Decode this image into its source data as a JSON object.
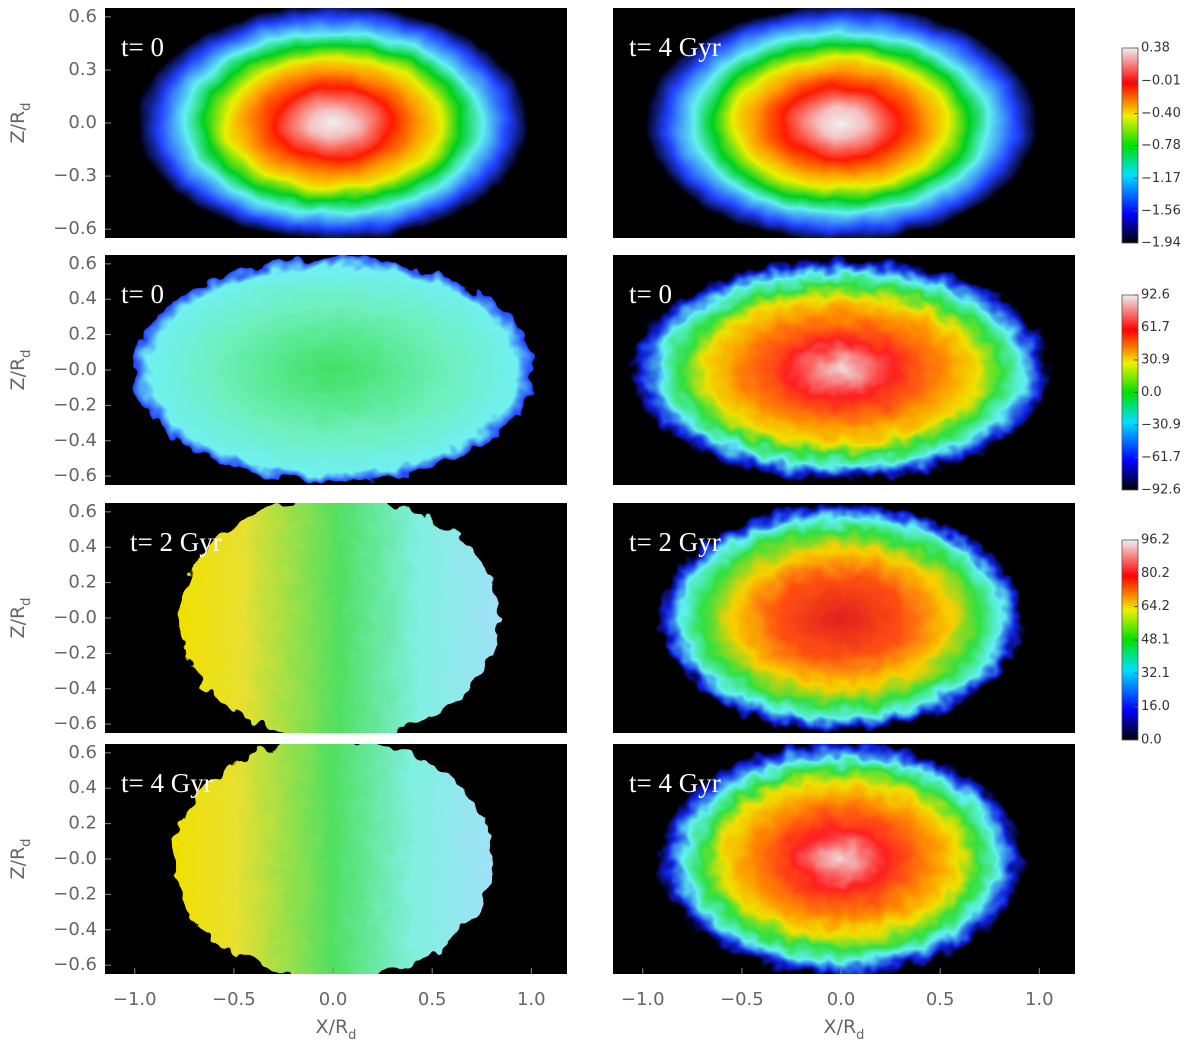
{
  "chart_data": [
    {
      "type": "heatmap",
      "annotation": "t= 0",
      "xlim": [
        -1.15,
        1.18
      ],
      "ylim": [
        -0.65,
        0.65
      ],
      "ylabel": {
        "text": "Z/R",
        "sub": "d"
      },
      "yticks": [
        {
          "value": 0.6,
          "label": "0.6"
        },
        {
          "value": 0.3,
          "label": "0.3"
        },
        {
          "value": 0,
          "label": "0.0"
        },
        {
          "value": -0.3,
          "label": "−0.3"
        },
        {
          "value": -0.6,
          "label": "−0.6"
        }
      ]
    },
    {
      "type": "heatmap",
      "annotation": "t= 4 Gyr",
      "xlim": [
        -1.15,
        1.18
      ],
      "ylim": [
        -0.65,
        0.65
      ],
      "colorbar": {
        "lim": [
          -1.94,
          0.38
        ],
        "ticks": [
          {
            "value": 0.38,
            "label": "0.38"
          },
          {
            "value": -0.01,
            "label": "−0.01"
          },
          {
            "value": -0.4,
            "label": "−0.40"
          },
          {
            "value": -0.78,
            "label": "−0.78"
          },
          {
            "value": -1.17,
            "label": "−1.17"
          },
          {
            "value": -1.56,
            "label": "−1.56"
          },
          {
            "value": -1.94,
            "label": "−1.94"
          }
        ]
      }
    },
    {
      "type": "heatmap",
      "annotation": "t= 0",
      "xlim": [
        -1.15,
        1.18
      ],
      "ylim": [
        -0.65,
        0.65
      ],
      "ylabel": {
        "text": "Z/R",
        "sub": "d"
      },
      "yticks": [
        {
          "value": 0.6,
          "label": "0.6"
        },
        {
          "value": 0.4,
          "label": "0.4"
        },
        {
          "value": 0.2,
          "label": "0.2"
        },
        {
          "value": 0,
          "label": "−0.0"
        },
        {
          "value": -0.2,
          "label": "−0.2"
        },
        {
          "value": -0.4,
          "label": "−0.4"
        },
        {
          "value": -0.6,
          "label": "−0.6"
        }
      ]
    },
    {
      "type": "heatmap",
      "annotation": "t= 0",
      "xlim": [
        -1.15,
        1.18
      ],
      "ylim": [
        -0.65,
        0.65
      ],
      "colorbar": {
        "lim": [
          -92.6,
          92.6
        ],
        "ticks": [
          92.6,
          61.7,
          30.9,
          {
            "value": 0,
            "label": "0.0"
          },
          {
            "value": -30.9,
            "label": "−30.9"
          },
          {
            "value": -61.7,
            "label": "−61.7"
          },
          {
            "value": -92.6,
            "label": "−92.6"
          }
        ]
      }
    },
    {
      "type": "heatmap",
      "annotation": "t= 2 Gyr",
      "xlim": [
        -1.15,
        1.18
      ],
      "ylim": [
        -0.65,
        0.65
      ],
      "ylabel": {
        "text": "Z/R",
        "sub": "d"
      },
      "yticks": [
        {
          "value": 0.6,
          "label": "0.6"
        },
        {
          "value": 0.4,
          "label": "0.4"
        },
        {
          "value": 0.2,
          "label": "0.2"
        },
        {
          "value": 0,
          "label": "−0.0"
        },
        {
          "value": -0.2,
          "label": "−0.2"
        },
        {
          "value": -0.4,
          "label": "−0.4"
        },
        {
          "value": -0.6,
          "label": "−0.6"
        }
      ]
    },
    {
      "type": "heatmap",
      "annotation": "t= 2 Gyr",
      "xlim": [
        -1.15,
        1.18
      ],
      "ylim": [
        -0.65,
        0.65
      ],
      "colorbar": {
        "lim": [
          0,
          96.2
        ],
        "ticks": [
          96.2,
          80.2,
          64.2,
          48.1,
          32.1,
          {
            "value": 16,
            "label": "16.0"
          },
          {
            "value": 0,
            "label": "0.0"
          }
        ]
      }
    },
    {
      "type": "heatmap",
      "annotation": "t= 4 Gyr",
      "xlim": [
        -1.15,
        1.18
      ],
      "ylim": [
        -0.65,
        0.65
      ],
      "ylabel": {
        "text": "Z/R",
        "sub": "d"
      },
      "xlabel": {
        "text": "X/R",
        "sub": "d"
      },
      "yticks": [
        {
          "value": 0.6,
          "label": "0.6"
        },
        {
          "value": 0.4,
          "label": "0.4"
        },
        {
          "value": 0.2,
          "label": "0.2"
        },
        {
          "value": 0,
          "label": "−0.0"
        },
        {
          "value": -0.2,
          "label": "−0.2"
        },
        {
          "value": -0.4,
          "label": "−0.4"
        },
        {
          "value": -0.6,
          "label": "−0.6"
        }
      ],
      "xticks": [
        {
          "value": -1,
          "label": "−1.0"
        },
        {
          "value": -0.5,
          "label": "−0.5"
        },
        {
          "value": 0,
          "label": "0.0"
        },
        0.5,
        {
          "value": 1,
          "label": "1.0"
        }
      ]
    },
    {
      "type": "heatmap",
      "annotation": "t= 4 Gyr",
      "xlim": [
        -1.15,
        1.18
      ],
      "ylim": [
        -0.65,
        0.65
      ],
      "xlabel": {
        "text": "X/R",
        "sub": "d"
      },
      "xticks": [
        {
          "value": -1,
          "label": "−1.0"
        },
        {
          "value": -0.5,
          "label": "−0.5"
        },
        {
          "value": 0,
          "label": "0.0"
        },
        0.5,
        {
          "value": 1,
          "label": "1.0"
        }
      ]
    }
  ]
}
